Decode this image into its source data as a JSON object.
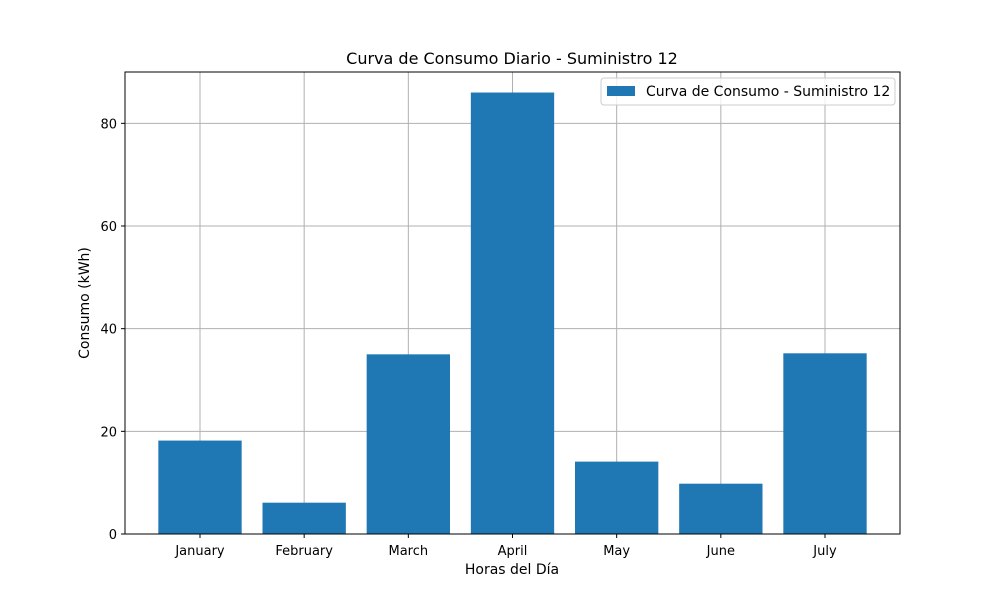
{
  "chart_data": {
    "type": "bar",
    "title": "Curva de Consumo Diario - Suministro 12",
    "xlabel": "Horas del Día",
    "ylabel": "Consumo (kWh)",
    "categories": [
      "January",
      "February",
      "March",
      "April",
      "May",
      "June",
      "July"
    ],
    "series": [
      {
        "name": "Curva de Consumo - Suministro 12",
        "values": [
          18.2,
          6.1,
          35.0,
          86.0,
          14.1,
          9.8,
          35.2
        ],
        "color": "#1f77b4"
      }
    ],
    "ylim": [
      0,
      90
    ],
    "yticks": [
      0,
      20,
      40,
      60,
      80
    ],
    "grid": true,
    "legend_position": "top-right"
  }
}
